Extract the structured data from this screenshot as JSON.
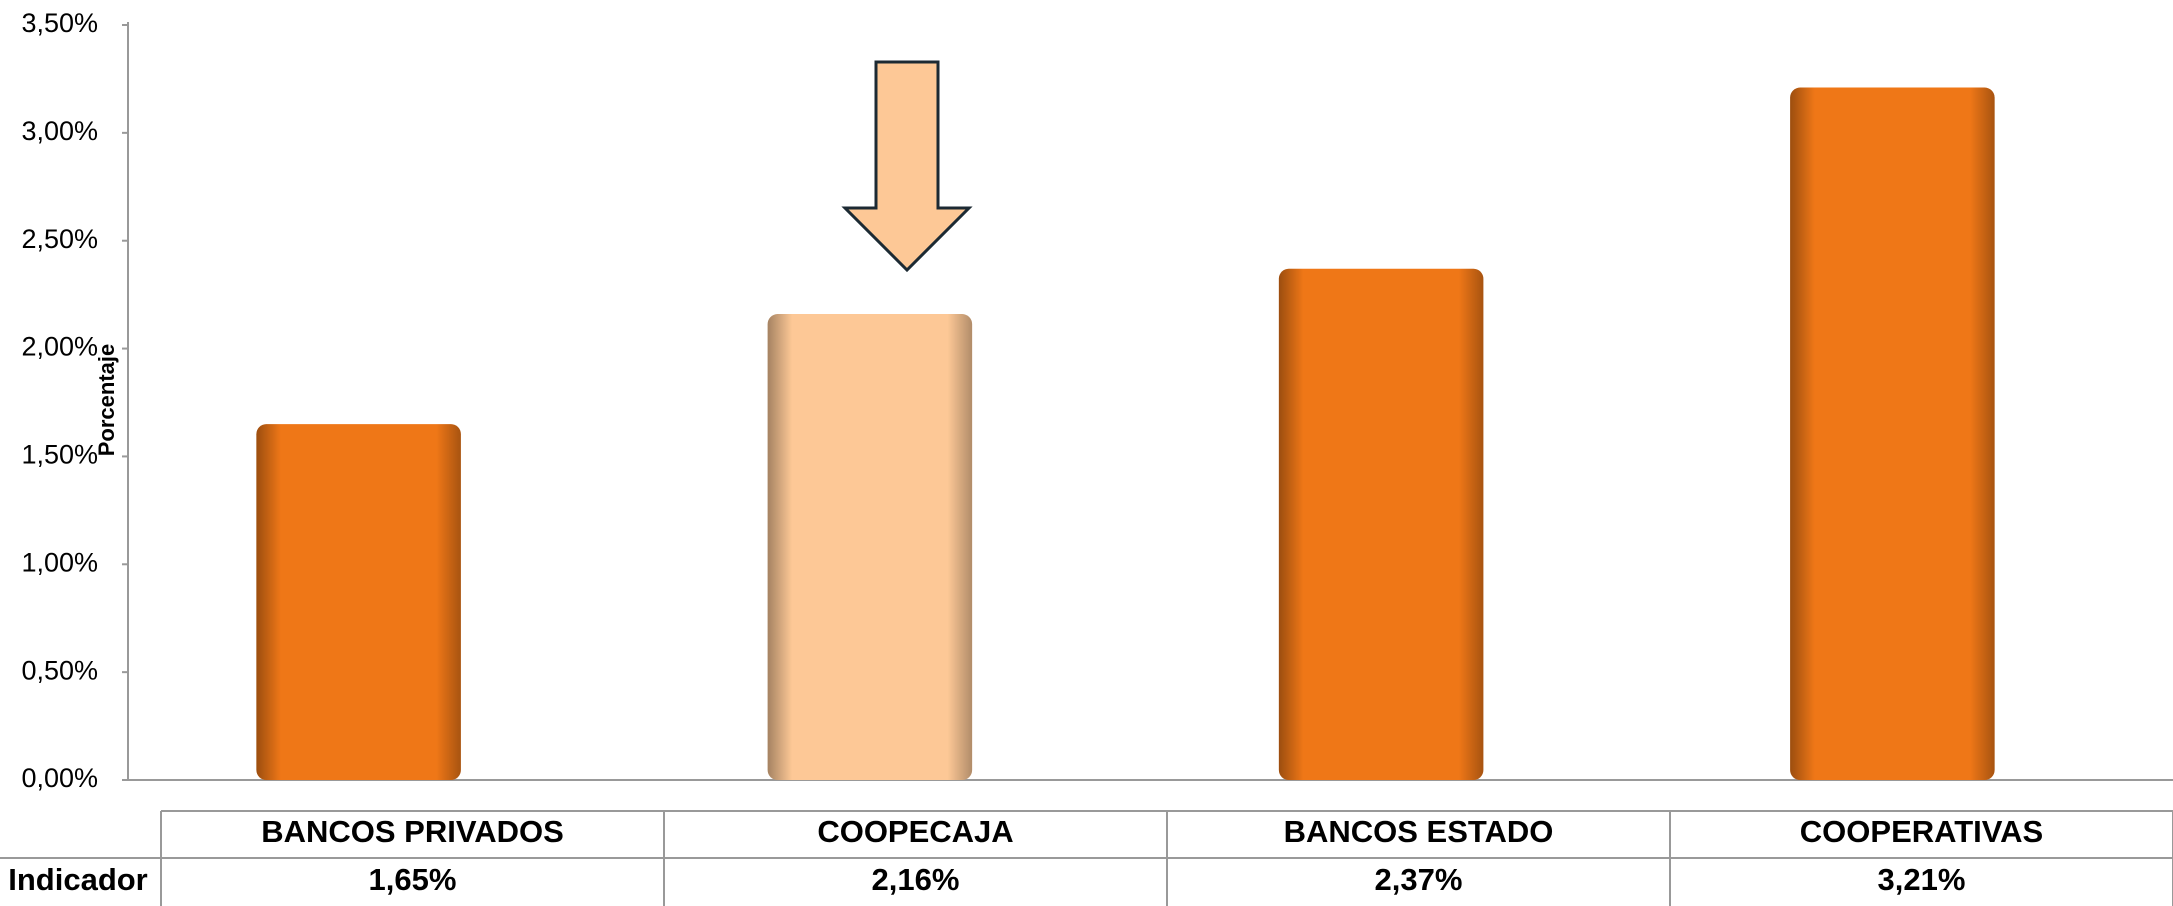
{
  "chart_data": {
    "type": "bar",
    "y_label": "Porcentaje",
    "categories": [
      "BANCOS PRIVADOS",
      "COOPECAJA",
      "BANCOS ESTADO",
      "COOPERATIVAS"
    ],
    "values": [
      1.65,
      2.16,
      2.37,
      3.21
    ],
    "value_labels": [
      "1,65%",
      "2,16%",
      "2,37%",
      "3,21%"
    ],
    "colors": [
      "#ef7717",
      "#fdc896",
      "#ef7717",
      "#ef7717"
    ],
    "table_row_label": "Indicador",
    "ylim": [
      0,
      3.5
    ],
    "yticks": [
      {
        "value": 0,
        "label": "0,00%"
      },
      {
        "value": 0.5,
        "label": "0,50%"
      },
      {
        "value": 1,
        "label": "1,00%"
      },
      {
        "value": 1.5,
        "label": "1,50%"
      },
      {
        "value": 2,
        "label": "2,00%"
      },
      {
        "value": 2.5,
        "label": "2,50%"
      },
      {
        "value": 3,
        "label": "3,00%"
      },
      {
        "value": 3.5,
        "label": "3,50%"
      }
    ]
  }
}
